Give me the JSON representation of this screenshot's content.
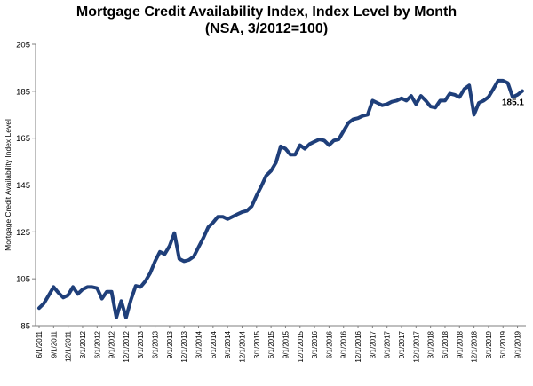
{
  "chart_data": {
    "type": "line",
    "title": "Mortgage Credit Availability Index, Index Level by Month",
    "subtitle": "(NSA, 3/2012=100)",
    "ylabel": "Mortgage Credit Availability Index Level",
    "xlabel": "",
    "ylim": [
      85,
      205
    ],
    "yticks": [
      85,
      105,
      125,
      145,
      165,
      185,
      205
    ],
    "xtick_labels": [
      "6/1/2011",
      "9/1/2011",
      "12/1/2011",
      "3/1/2012",
      "6/1/2012",
      "9/1/2012",
      "12/1/2012",
      "3/1/2013",
      "6/1/2013",
      "9/1/2013",
      "12/1/2013",
      "3/1/2014",
      "6/1/2014",
      "9/1/2014",
      "12/1/2014",
      "3/1/2015",
      "6/1/2015",
      "9/1/2015",
      "12/1/2015",
      "3/1/2016",
      "6/1/2016",
      "9/1/2016",
      "12/1/2016",
      "3/1/2017",
      "6/1/2017",
      "9/1/2017",
      "12/1/2017",
      "3/1/2018",
      "6/1/2018",
      "9/1/2018",
      "12/1/2018",
      "3/1/2019",
      "6/1/2019",
      "9/1/2019"
    ],
    "line_color": "#1f3f7a",
    "grid": false,
    "end_label": "185.1",
    "series": [
      {
        "x": [
          "6/1/2011",
          "7/1/2011",
          "8/1/2011",
          "9/1/2011",
          "10/1/2011",
          "11/1/2011",
          "12/1/2011",
          "1/1/2012",
          "2/1/2012",
          "3/1/2012",
          "4/1/2012",
          "5/1/2012",
          "6/1/2012",
          "7/1/2012",
          "8/1/2012",
          "9/1/2012",
          "10/1/2012",
          "11/1/2012",
          "12/1/2012",
          "1/1/2013",
          "2/1/2013",
          "3/1/2013",
          "4/1/2013",
          "5/1/2013",
          "6/1/2013",
          "7/1/2013",
          "8/1/2013",
          "9/1/2013",
          "10/1/2013",
          "11/1/2013",
          "12/1/2013",
          "1/1/2014",
          "2/1/2014",
          "3/1/2014",
          "4/1/2014",
          "5/1/2014",
          "6/1/2014",
          "7/1/2014",
          "8/1/2014",
          "9/1/2014",
          "10/1/2014",
          "11/1/2014",
          "12/1/2014",
          "1/1/2015",
          "2/1/2015",
          "3/1/2015",
          "4/1/2015",
          "5/1/2015",
          "6/1/2015",
          "7/1/2015",
          "8/1/2015",
          "9/1/2015",
          "10/1/2015",
          "11/1/2015",
          "12/1/2015",
          "1/1/2016",
          "2/1/2016",
          "3/1/2016",
          "4/1/2016",
          "5/1/2016",
          "6/1/2016",
          "7/1/2016",
          "8/1/2016",
          "9/1/2016",
          "10/1/2016",
          "11/1/2016",
          "12/1/2016",
          "1/1/2017",
          "2/1/2017",
          "3/1/2017",
          "4/1/2017",
          "5/1/2017",
          "6/1/2017",
          "7/1/2017",
          "8/1/2017",
          "9/1/2017",
          "10/1/2017",
          "11/1/2017",
          "12/1/2017",
          "1/1/2018",
          "2/1/2018",
          "3/1/2018",
          "4/1/2018",
          "5/1/2018",
          "6/1/2018",
          "7/1/2018",
          "8/1/2018",
          "9/1/2018",
          "10/1/2018",
          "11/1/2018",
          "12/1/2018",
          "1/1/2019",
          "2/1/2019",
          "3/1/2019",
          "4/1/2019",
          "5/1/2019",
          "6/1/2019",
          "7/1/2019",
          "8/1/2019",
          "9/1/2019",
          "10/1/2019"
        ],
        "values": [
          92.5,
          94.5,
          98,
          101.5,
          99,
          97,
          98,
          101.5,
          98.5,
          100.5,
          101.5,
          101.5,
          101,
          96.5,
          99.5,
          99.5,
          88.5,
          95.5,
          88.5,
          96,
          102,
          101.5,
          104,
          107.5,
          112.5,
          116.5,
          115.5,
          119,
          124.5,
          113.5,
          112.5,
          113,
          114.5,
          118.5,
          122.5,
          127,
          129,
          131.5,
          131.5,
          130.5,
          131.5,
          132.5,
          133.5,
          134,
          136,
          140.5,
          144.5,
          149,
          151,
          154.5,
          161.5,
          160.5,
          158,
          158,
          162,
          160.5,
          162.5,
          163.5,
          164.5,
          164,
          162,
          164,
          164.5,
          168,
          171.5,
          173,
          173.5,
          174.5,
          175,
          181,
          180,
          179,
          179.5,
          180.5,
          181,
          182,
          181,
          183,
          179.5,
          183,
          181,
          178.5,
          178,
          181,
          181,
          184,
          183.5,
          182.5,
          186,
          187.5,
          175,
          180,
          181,
          182.5,
          186,
          189.5,
          189.5,
          188.5,
          182.5,
          183.5,
          185.1
        ]
      }
    ]
  }
}
